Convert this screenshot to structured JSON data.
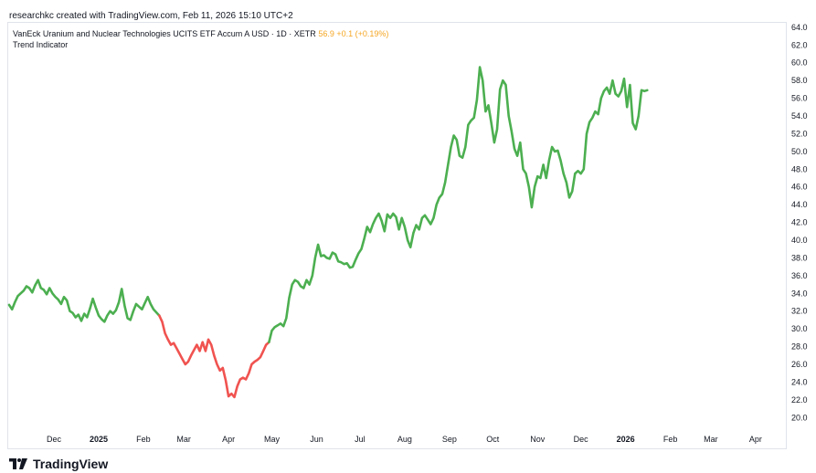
{
  "header": {
    "caption": "researchkc created with TradingView.com, Feb 11, 2026 15:10 UTC+2"
  },
  "legend": {
    "title": "VanEck Uranium and Nuclear Technologies UCITS ETF Accum A USD · 1D · XETR",
    "last_price": "56.9",
    "change": "+0.1 (+0.19%)",
    "indicator": "Trend Indicator"
  },
  "brand": {
    "logo_text": "TradingView"
  },
  "colors": {
    "up": "#4caf50",
    "down": "#f05350",
    "axis_text": "#131722",
    "last_price": "#f5a623"
  },
  "chart_data": {
    "type": "line",
    "title": "VanEck Uranium and Nuclear Technologies UCITS ETF Accum A USD · 1D · XETR",
    "xlabel": "",
    "ylabel": "",
    "ylim": [
      19.0,
      64.5
    ],
    "y_ticks": [
      20.0,
      22.0,
      24.0,
      26.0,
      28.0,
      30.0,
      32.0,
      34.0,
      36.0,
      38.0,
      40.0,
      42.0,
      44.0,
      46.0,
      48.0,
      50.0,
      52.0,
      54.0,
      56.0,
      58.0,
      60.0,
      62.0,
      64.0
    ],
    "x_ticks": [
      {
        "day": 31,
        "label": "Dec"
      },
      {
        "day": 62,
        "label": "2025"
      },
      {
        "day": 93,
        "label": "Feb"
      },
      {
        "day": 121,
        "label": "Mar"
      },
      {
        "day": 152,
        "label": "Apr"
      },
      {
        "day": 182,
        "label": "May"
      },
      {
        "day": 213,
        "label": "Jun"
      },
      {
        "day": 243,
        "label": "Jul"
      },
      {
        "day": 274,
        "label": "Aug"
      },
      {
        "day": 305,
        "label": "Sep"
      },
      {
        "day": 335,
        "label": "Oct"
      },
      {
        "day": 366,
        "label": "Nov"
      },
      {
        "day": 396,
        "label": "Dec"
      },
      {
        "day": 427,
        "label": "2026"
      },
      {
        "day": 458,
        "label": "Feb"
      },
      {
        "day": 486,
        "label": "Mar"
      },
      {
        "day": 517,
        "label": "Apr"
      }
    ],
    "x_range_days": [
      0,
      538
    ],
    "series": [
      {
        "name": "VanEck Uranium & Nuclear (Trend Indicator)",
        "segments": [
          {
            "trend": "up",
            "points": [
              [
                0,
                32.7
              ],
              [
                2,
                32.2
              ],
              [
                4,
                33.0
              ],
              [
                6,
                33.7
              ],
              [
                8,
                34.0
              ],
              [
                10,
                34.3
              ],
              [
                12,
                34.8
              ],
              [
                14,
                34.6
              ],
              [
                16,
                34.1
              ],
              [
                18,
                34.9
              ],
              [
                20,
                35.5
              ],
              [
                22,
                34.6
              ],
              [
                24,
                34.4
              ],
              [
                26,
                33.9
              ],
              [
                28,
                34.6
              ],
              [
                30,
                34.0
              ],
              [
                32,
                33.6
              ],
              [
                34,
                33.3
              ],
              [
                36,
                32.8
              ],
              [
                38,
                33.6
              ],
              [
                40,
                33.2
              ],
              [
                42,
                32.0
              ],
              [
                44,
                31.8
              ],
              [
                46,
                31.3
              ],
              [
                48,
                31.6
              ],
              [
                50,
                30.9
              ],
              [
                52,
                31.7
              ],
              [
                54,
                31.3
              ],
              [
                56,
                32.3
              ],
              [
                58,
                33.4
              ],
              [
                60,
                32.4
              ],
              [
                62,
                31.5
              ],
              [
                64,
                31.1
              ],
              [
                66,
                30.8
              ],
              [
                68,
                31.5
              ],
              [
                70,
                32.0
              ],
              [
                72,
                31.7
              ],
              [
                74,
                32.1
              ],
              [
                76,
                33.0
              ],
              [
                78,
                34.5
              ],
              [
                80,
                32.6
              ],
              [
                82,
                31.2
              ],
              [
                84,
                31.0
              ],
              [
                86,
                32.0
              ],
              [
                88,
                32.8
              ],
              [
                90,
                32.5
              ],
              [
                92,
                32.2
              ],
              [
                94,
                32.9
              ],
              [
                96,
                33.6
              ],
              [
                98,
                32.8
              ],
              [
                100,
                32.2
              ],
              [
                104,
                31.5
              ]
            ]
          },
          {
            "trend": "down",
            "points": [
              [
                104,
                31.5
              ],
              [
                106,
                30.8
              ],
              [
                108,
                29.5
              ],
              [
                110,
                28.8
              ],
              [
                112,
                28.2
              ],
              [
                114,
                28.4
              ],
              [
                116,
                27.8
              ],
              [
                118,
                27.2
              ],
              [
                120,
                26.6
              ],
              [
                122,
                26.0
              ],
              [
                124,
                26.3
              ],
              [
                126,
                27.0
              ],
              [
                128,
                27.6
              ],
              [
                130,
                28.2
              ],
              [
                132,
                27.5
              ],
              [
                134,
                28.5
              ],
              [
                136,
                27.5
              ],
              [
                138,
                28.8
              ],
              [
                140,
                28.2
              ],
              [
                142,
                27.0
              ],
              [
                144,
                26.0
              ],
              [
                146,
                25.3
              ],
              [
                148,
                25.6
              ],
              [
                150,
                24.2
              ],
              [
                152,
                22.4
              ],
              [
                154,
                22.7
              ],
              [
                156,
                22.3
              ],
              [
                158,
                23.5
              ],
              [
                160,
                24.3
              ],
              [
                162,
                24.5
              ],
              [
                164,
                24.3
              ],
              [
                166,
                25.0
              ],
              [
                168,
                26.0
              ],
              [
                170,
                26.3
              ],
              [
                172,
                26.5
              ],
              [
                174,
                26.8
              ],
              [
                176,
                27.5
              ],
              [
                178,
                28.2
              ],
              [
                180,
                28.5
              ]
            ]
          },
          {
            "trend": "up",
            "points": [
              [
                180,
                28.5
              ],
              [
                182,
                29.8
              ],
              [
                184,
                30.2
              ],
              [
                186,
                30.4
              ],
              [
                188,
                30.6
              ],
              [
                190,
                30.3
              ],
              [
                192,
                31.2
              ],
              [
                194,
                33.5
              ],
              [
                196,
                35.0
              ],
              [
                198,
                35.5
              ],
              [
                200,
                35.3
              ],
              [
                202,
                34.8
              ],
              [
                204,
                34.6
              ],
              [
                206,
                35.5
              ],
              [
                208,
                35.0
              ],
              [
                210,
                36.0
              ],
              [
                212,
                38.0
              ],
              [
                214,
                39.5
              ],
              [
                216,
                38.2
              ],
              [
                218,
                38.3
              ],
              [
                220,
                38.0
              ],
              [
                222,
                37.9
              ],
              [
                224,
                38.6
              ],
              [
                226,
                38.4
              ],
              [
                228,
                37.6
              ],
              [
                230,
                37.5
              ],
              [
                232,
                37.3
              ],
              [
                234,
                37.4
              ],
              [
                236,
                36.9
              ],
              [
                238,
                37.0
              ],
              [
                240,
                37.8
              ],
              [
                242,
                38.5
              ],
              [
                244,
                39.0
              ],
              [
                246,
                40.2
              ],
              [
                248,
                41.5
              ],
              [
                250,
                40.9
              ],
              [
                252,
                41.8
              ],
              [
                254,
                42.5
              ],
              [
                256,
                43.0
              ],
              [
                258,
                42.2
              ],
              [
                260,
                41.0
              ],
              [
                262,
                42.9
              ],
              [
                264,
                42.5
              ],
              [
                266,
                43.0
              ],
              [
                268,
                42.6
              ],
              [
                270,
                41.2
              ],
              [
                272,
                42.5
              ],
              [
                274,
                41.5
              ],
              [
                276,
                40.0
              ],
              [
                278,
                39.2
              ],
              [
                280,
                40.8
              ],
              [
                282,
                41.7
              ],
              [
                284,
                41.2
              ],
              [
                286,
                42.5
              ],
              [
                288,
                42.8
              ],
              [
                290,
                42.3
              ],
              [
                292,
                41.8
              ],
              [
                294,
                42.5
              ],
              [
                296,
                44.0
              ],
              [
                298,
                44.8
              ],
              [
                300,
                45.2
              ],
              [
                302,
                46.5
              ],
              [
                304,
                48.5
              ],
              [
                306,
                50.5
              ],
              [
                308,
                51.8
              ],
              [
                310,
                51.3
              ],
              [
                312,
                49.5
              ],
              [
                314,
                49.3
              ],
              [
                316,
                50.5
              ],
              [
                318,
                53.0
              ],
              [
                320,
                53.5
              ],
              [
                322,
                53.8
              ],
              [
                324,
                55.8
              ],
              [
                326,
                59.5
              ],
              [
                328,
                58.0
              ],
              [
                330,
                54.5
              ],
              [
                332,
                55.2
              ],
              [
                334,
                53.2
              ],
              [
                336,
                51.0
              ],
              [
                338,
                52.5
              ],
              [
                340,
                57.0
              ],
              [
                342,
                58.0
              ],
              [
                344,
                57.5
              ],
              [
                346,
                54.0
              ],
              [
                348,
                52.3
              ],
              [
                350,
                50.3
              ],
              [
                352,
                49.5
              ],
              [
                354,
                51.0
              ],
              [
                356,
                48.0
              ],
              [
                358,
                47.5
              ],
              [
                360,
                46.0
              ],
              [
                362,
                43.7
              ],
              [
                364,
                46.0
              ],
              [
                366,
                47.2
              ],
              [
                368,
                47.0
              ],
              [
                370,
                48.5
              ],
              [
                372,
                47.0
              ],
              [
                374,
                49.0
              ],
              [
                376,
                50.5
              ],
              [
                378,
                50.0
              ],
              [
                380,
                50.1
              ],
              [
                382,
                49.0
              ],
              [
                384,
                47.5
              ],
              [
                386,
                46.5
              ],
              [
                388,
                44.8
              ],
              [
                390,
                45.5
              ],
              [
                392,
                47.5
              ],
              [
                394,
                47.8
              ],
              [
                396,
                47.5
              ],
              [
                398,
                48.0
              ],
              [
                400,
                52.0
              ],
              [
                402,
                53.3
              ],
              [
                404,
                53.8
              ],
              [
                406,
                54.5
              ],
              [
                408,
                54.2
              ],
              [
                410,
                56.0
              ],
              [
                412,
                56.8
              ],
              [
                414,
                57.2
              ],
              [
                416,
                56.5
              ],
              [
                418,
                58.0
              ],
              [
                420,
                56.5
              ],
              [
                422,
                56.2
              ],
              [
                424,
                56.8
              ],
              [
                426,
                58.2
              ],
              [
                428,
                55.0
              ],
              [
                430,
                57.5
              ],
              [
                432,
                53.2
              ],
              [
                434,
                52.5
              ],
              [
                436,
                54.0
              ],
              [
                438,
                56.9
              ],
              [
                440,
                56.8
              ],
              [
                442,
                56.9
              ]
            ]
          }
        ]
      }
    ]
  }
}
